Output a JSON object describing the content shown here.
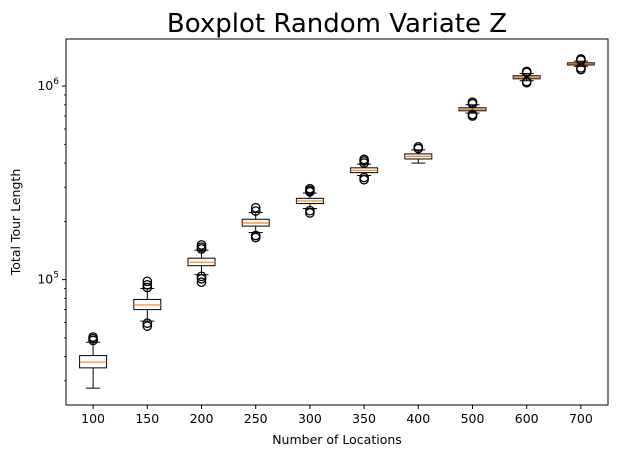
{
  "chart_data": {
    "type": "boxplot",
    "title": "Boxplot Random Variate Z",
    "xlabel": "Number of Locations",
    "ylabel": "Total Tour Length",
    "yscale": "log",
    "ylim": [
      22500,
      1750000
    ],
    "y_ticks": [
      {
        "value": 100000,
        "base": "10",
        "exp": "5"
      },
      {
        "value": 1000000,
        "base": "10",
        "exp": "6"
      }
    ],
    "grid": false,
    "colors": {
      "box": "#000000",
      "median": "#ff7f0e",
      "fill": "#ffffff"
    },
    "categories": [
      "100",
      "150",
      "200",
      "250",
      "300",
      "350",
      "400",
      "500",
      "600",
      "700"
    ],
    "boxes": [
      {
        "whisker_low": 27500,
        "q1": 35000,
        "median": 37500,
        "q3": 40500,
        "whisker_high": 47500,
        "outliers_high": [
          48500,
          49500,
          50500
        ],
        "outliers_low": []
      },
      {
        "whisker_low": 61000,
        "q1": 70000,
        "median": 74000,
        "q3": 79000,
        "whisker_high": 90000,
        "outliers_high": [
          91000,
          94000,
          98000
        ],
        "outliers_low": [
          57500,
          59500
        ]
      },
      {
        "whisker_low": 106000,
        "q1": 118000,
        "median": 123000,
        "q3": 129000,
        "whisker_high": 142000,
        "outliers_high": [
          144000,
          147000,
          151000
        ],
        "outliers_low": [
          97000,
          101000,
          104000
        ]
      },
      {
        "whisker_low": 175000,
        "q1": 189000,
        "median": 196000,
        "q3": 205000,
        "whisker_high": 222000,
        "outliers_high": [
          226000,
          235000
        ],
        "outliers_low": [
          165000,
          169000
        ]
      },
      {
        "whisker_low": 233000,
        "q1": 247000,
        "median": 255000,
        "q3": 263000,
        "whisker_high": 280000,
        "outliers_high": [
          284000,
          289000,
          295000
        ],
        "outliers_low": [
          221000,
          227000
        ]
      },
      {
        "whisker_low": 345000,
        "q1": 357000,
        "median": 367000,
        "q3": 378000,
        "whisker_high": 395000,
        "outliers_high": [
          400000,
          410000,
          418000
        ],
        "outliers_low": [
          328000,
          337000
        ]
      },
      {
        "whisker_low": 400000,
        "q1": 420000,
        "median": 433000,
        "q3": 446000,
        "whisker_high": 468000,
        "outliers_high": [
          475000,
          485000
        ],
        "outliers_low": []
      },
      {
        "whisker_low": 725000,
        "q1": 745000,
        "median": 758000,
        "q3": 772000,
        "whisker_high": 800000,
        "outliers_high": [
          810000,
          825000
        ],
        "outliers_low": [
          700000,
          712000
        ]
      },
      {
        "whisker_low": 1065000,
        "q1": 1090000,
        "median": 1110000,
        "q3": 1130000,
        "whisker_high": 1160000,
        "outliers_high": [
          1175000,
          1190000
        ],
        "outliers_low": [
          1040000,
          1055000
        ]
      },
      {
        "whisker_low": 1265000,
        "q1": 1285000,
        "median": 1300000,
        "q3": 1318000,
        "whisker_high": 1345000,
        "outliers_high": [
          1360000,
          1380000
        ],
        "outliers_low": [
          1215000,
          1240000
        ]
      }
    ]
  }
}
